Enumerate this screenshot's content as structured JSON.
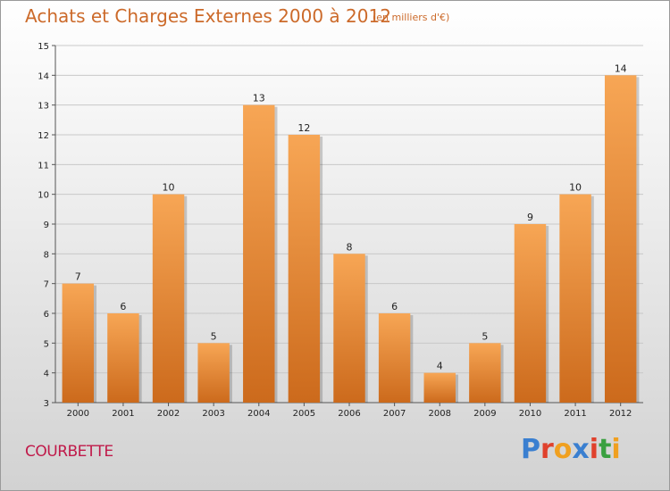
{
  "header": {
    "title": "Achats et Charges Externes 2000 à 2012",
    "subtitle": "(en milliers d'€)"
  },
  "footer": {
    "commune": "COURBETTE",
    "logo": "Proxiti",
    "logo_colors": [
      "#3a7fd0",
      "#e0412c",
      "#f0a020",
      "#3a7fd0",
      "#e0412c",
      "#3aa040",
      "#f0a020"
    ]
  },
  "colors": {
    "bar_top": "#f7a655",
    "bar_bottom": "#cc6a1c",
    "grid": "#c8c8c8",
    "axis": "#555555",
    "title": "#cc6a2a",
    "commune": "#c01a4a"
  },
  "chart_data": {
    "type": "bar",
    "categories": [
      "2000",
      "2001",
      "2002",
      "2003",
      "2004",
      "2005",
      "2006",
      "2007",
      "2008",
      "2009",
      "2010",
      "2011",
      "2012"
    ],
    "values": [
      7,
      6,
      10,
      5,
      13,
      12,
      8,
      6,
      4,
      5,
      9,
      10,
      14
    ],
    "title": "Achats et Charges Externes 2000 à 2012",
    "xlabel": "",
    "ylabel": "",
    "ylim": [
      3,
      15
    ],
    "yticks": [
      3,
      4,
      5,
      6,
      7,
      8,
      9,
      10,
      11,
      12,
      13,
      14,
      15
    ],
    "grid": true,
    "data_labels": true
  }
}
